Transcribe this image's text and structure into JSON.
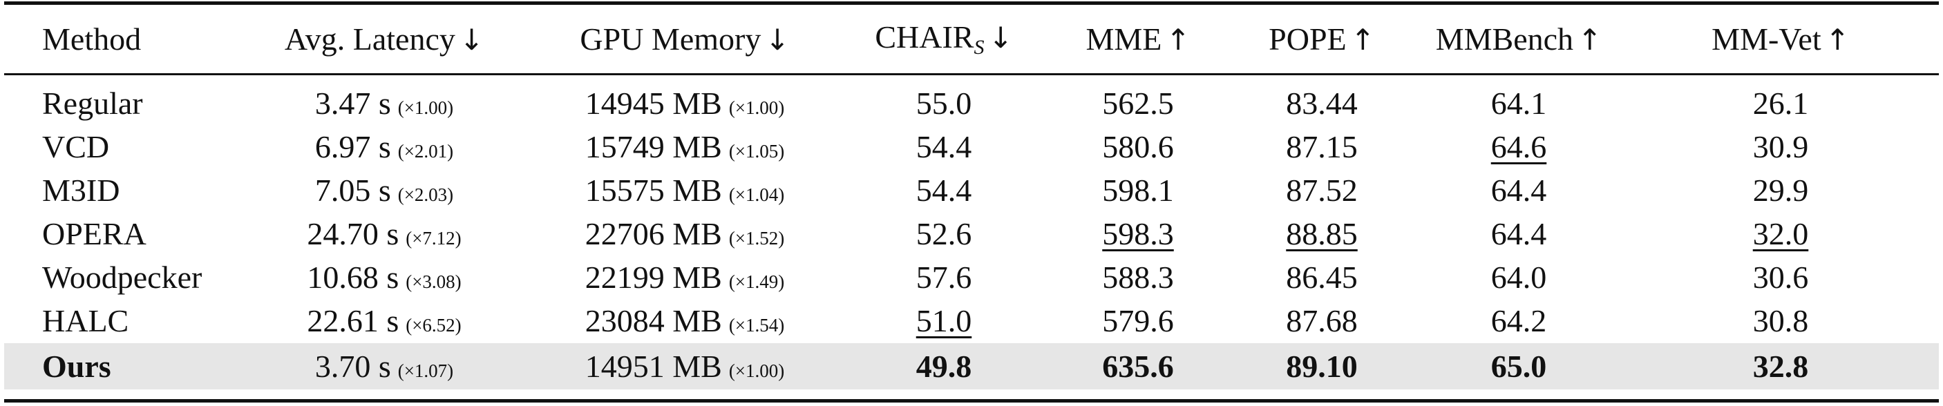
{
  "header": {
    "method": "Method",
    "latency": "Avg. Latency",
    "latency_arrow": "↓",
    "gpu": "GPU Memory",
    "gpu_arrow": "↓",
    "chair": "CHAIR",
    "chair_sub": "S",
    "chair_arrow": "↓",
    "mme": "MME",
    "mme_arrow": "↑",
    "pope": "POPE",
    "pope_arrow": "↑",
    "mmbench": "MMBench",
    "mmbench_arrow": "↑",
    "mmvet": "MM-Vet",
    "mmvet_arrow": "↑"
  },
  "rows": [
    {
      "method": "Regular",
      "latency": "3.47 s",
      "latency_mult": "(×1.00)",
      "gpu": "14945 MB",
      "gpu_mult": "(×1.00)",
      "chair": "55.0",
      "mme": "562.5",
      "pope": "83.44",
      "mmbench": "64.1",
      "mmvet": "26.1"
    },
    {
      "method": "VCD",
      "latency": "6.97 s",
      "latency_mult": "(×2.01)",
      "gpu": "15749 MB",
      "gpu_mult": "(×1.05)",
      "chair": "54.4",
      "mme": "580.6",
      "pope": "87.15",
      "mmbench": "64.6",
      "mmvet": "30.9"
    },
    {
      "method": "M3ID",
      "latency": "7.05 s",
      "latency_mult": "(×2.03)",
      "gpu": "15575 MB",
      "gpu_mult": "(×1.04)",
      "chair": "54.4",
      "mme": "598.1",
      "pope": "87.52",
      "mmbench": "64.4",
      "mmvet": "29.9"
    },
    {
      "method": "OPERA",
      "latency": "24.70 s",
      "latency_mult": "(×7.12)",
      "gpu": "22706 MB",
      "gpu_mult": "(×1.52)",
      "chair": "52.6",
      "mme": "598.3",
      "pope": "88.85",
      "mmbench": "64.4",
      "mmvet": "32.0"
    },
    {
      "method": "Woodpecker",
      "latency": "10.68 s",
      "latency_mult": "(×3.08)",
      "gpu": "22199 MB",
      "gpu_mult": "(×1.49)",
      "chair": "57.6",
      "mme": "588.3",
      "pope": "86.45",
      "mmbench": "64.0",
      "mmvet": "30.6"
    },
    {
      "method": "HALC",
      "latency": "22.61 s",
      "latency_mult": "(×6.52)",
      "gpu": "23084 MB",
      "gpu_mult": "(×1.54)",
      "chair": "51.0",
      "mme": "579.6",
      "pope": "87.68",
      "mmbench": "64.2",
      "mmvet": "30.8"
    },
    {
      "method": "Ours",
      "latency": "3.70 s",
      "latency_mult": "(×1.07)",
      "gpu": "14951 MB",
      "gpu_mult": "(×1.00)",
      "chair": "49.8",
      "mme": "635.6",
      "pope": "89.10",
      "mmbench": "65.0",
      "mmvet": "32.8"
    }
  ],
  "colors": {
    "highlight_row": "#e6e6e6",
    "text": "#111111"
  }
}
